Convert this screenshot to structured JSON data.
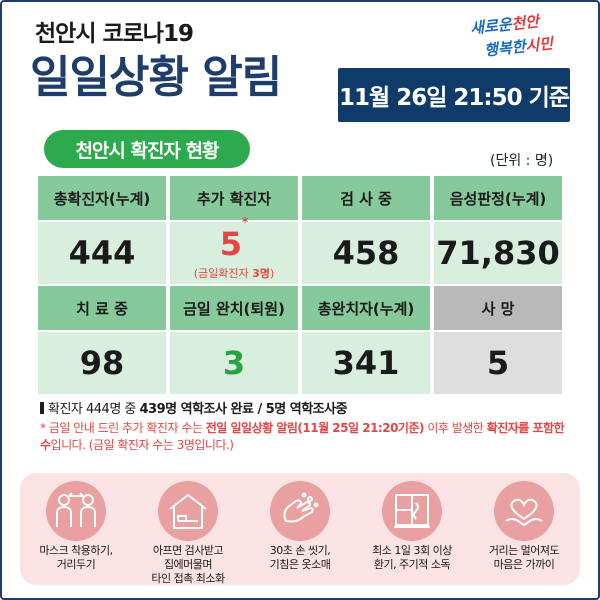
{
  "header": {
    "subtitle": "천안시 코로나19",
    "title": "일일상황 알림",
    "date": "11월 26일 21:50 기준"
  },
  "logo": {
    "line1_a": "새로운",
    "line1_b": "천안",
    "line2_a": "행복한",
    "line2_b": "시민"
  },
  "section": {
    "title": "천안시 확진자 현황",
    "unit": "(단위 : 명)"
  },
  "stats": {
    "total_label": "총확진자(누계)",
    "total_value": "444",
    "added_label": "추가 확진자",
    "added_value": "5",
    "added_mark": "*",
    "added_note_a": "(금일확진자 ",
    "added_note_b": "3명",
    "added_note_c": ")",
    "testing_label": "검 사 중",
    "testing_value": "458",
    "negative_label": "음성판정(누계)",
    "negative_value": "71,830",
    "treating_label": "치 료 중",
    "treating_value": "98",
    "discharged_today_label": "금일 완치(퇴원)",
    "discharged_today_value": "3",
    "discharged_total_label": "총완치자(누계)",
    "discharged_total_value": "341",
    "death_label": "사  망",
    "death_value": "5"
  },
  "summary": {
    "prefix": "확진자 444명 중 ",
    "bold1": "439명 역학조사 완료 / 5명 역학조사중"
  },
  "note": {
    "p1": "* 금일 안내 드린 추가 확진자 수는 ",
    "b1": "전일 일일상황 알림(11월 25일 21:20기준)",
    "p2": " 이후 발생한 ",
    "b2": "확진자를 포함한 수",
    "p3": "입니다. (금일 확진자 수는 3명입니다.)"
  },
  "tips": [
    {
      "icon": "mask-distance-icon",
      "line1": "마스크 착용하기,",
      "line2": "거리두기",
      "line3": ""
    },
    {
      "icon": "stay-home-icon",
      "line1": "아프면 검사받고",
      "line2": "집에머물며",
      "line3": "타인 접촉 최소화"
    },
    {
      "icon": "hand-wash-icon",
      "line1": "30초 손 씻기,",
      "line2": "기침은 옷소매",
      "line3": ""
    },
    {
      "icon": "ventilation-icon",
      "line1": "최소 1일 3회 이상",
      "line2": "환기, 주기적 소독",
      "line3": ""
    },
    {
      "icon": "heart-hands-icon",
      "line1": "거리는 멀어져도",
      "line2": "마음은 가까이",
      "line3": ""
    }
  ],
  "colors": {
    "navy": "#0f3b6a",
    "green": "#2daa4d",
    "header_cell": "#86c99b",
    "value_cell": "#d8efde",
    "red": "#e64545",
    "tips_bg": "#fbe3e3"
  }
}
